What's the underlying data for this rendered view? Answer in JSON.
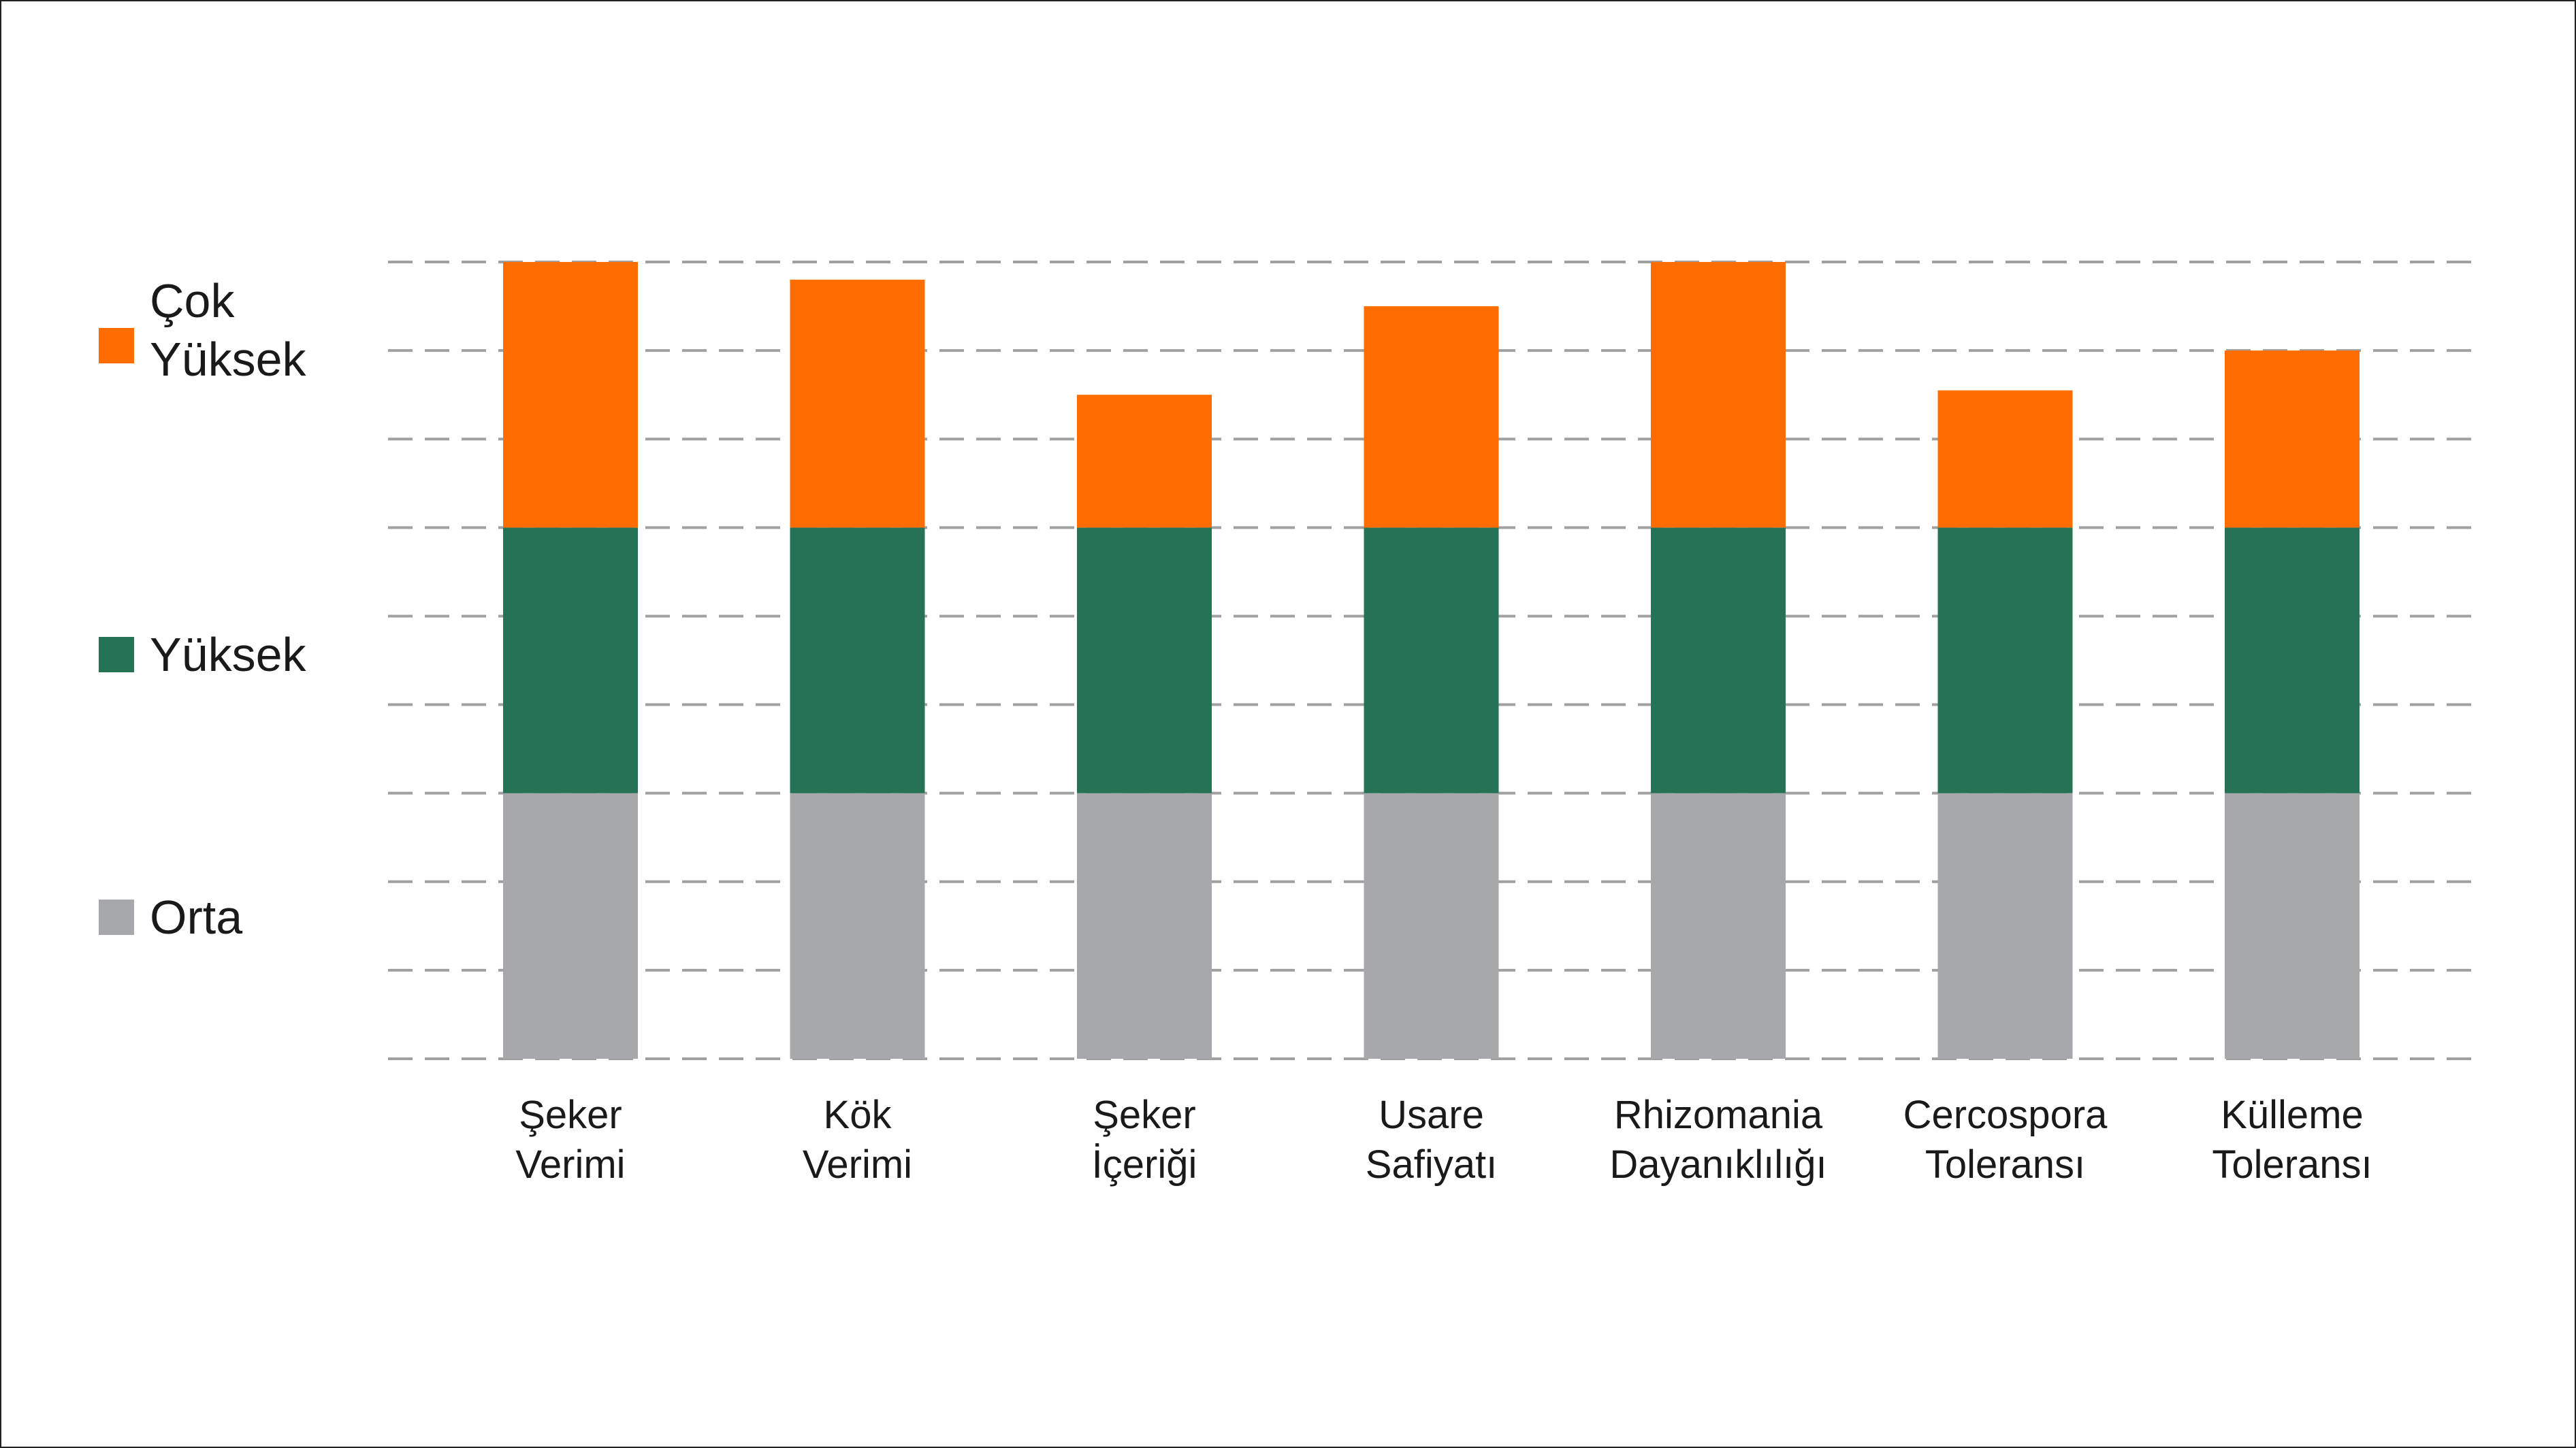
{
  "chart_data": {
    "type": "bar",
    "stacked": true,
    "categories": [
      [
        "Şeker",
        "Verimi"
      ],
      [
        "Kök",
        "Verimi"
      ],
      [
        "Şeker",
        "İçeriği"
      ],
      [
        "Usare",
        "Safiyatı"
      ],
      [
        "Rhizomania",
        "Dayanıklılığı"
      ],
      [
        "Cercospora",
        "Toleransı"
      ],
      [
        "Külleme",
        "Toleransı"
      ]
    ],
    "series": [
      {
        "name": "Orta",
        "color": "#a7a8ab",
        "values": [
          3,
          3,
          3,
          3,
          3,
          3,
          3
        ]
      },
      {
        "name": "Yüksek",
        "color": "#257354",
        "values": [
          3,
          3,
          3,
          3,
          3,
          3,
          3
        ]
      },
      {
        "name": "Çok Yüksek",
        "color": "#ff6d00",
        "values": [
          3,
          2.8,
          1.5,
          2.5,
          3,
          1.55,
          2
        ]
      }
    ],
    "legend": [
      {
        "lines": [
          "Çok",
          "Yüksek"
        ],
        "color": "#ff6d00"
      },
      {
        "lines": [
          "Yüksek"
        ],
        "color": "#257354"
      },
      {
        "lines": [
          "Orta"
        ],
        "color": "#a7a8ab"
      }
    ],
    "ylim": [
      0,
      9
    ],
    "grid": true,
    "grid_style": "dashed",
    "legend_position": "left"
  }
}
